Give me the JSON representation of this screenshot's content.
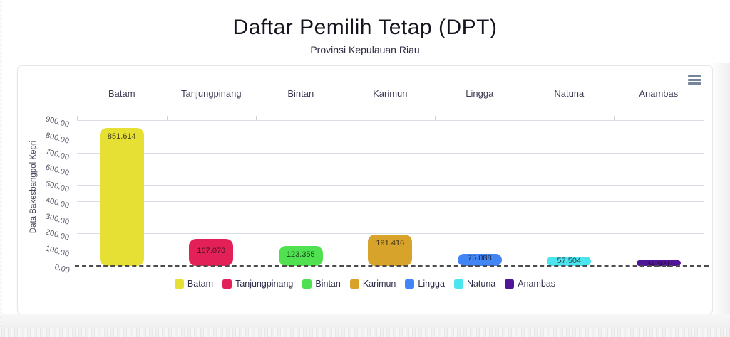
{
  "header": {
    "title": "Daftar Pemilih Tetap (DPT)",
    "subtitle": "Provinsi Kepulauan Riau"
  },
  "icons": {
    "chart_menu": "hamburger-menu-icon"
  },
  "colors": {
    "grid": "#d9dee4",
    "zero_line": "#4c4c4c",
    "menu_icon": "#76869a",
    "title_text": "#15151f",
    "axis_text": "#5c5c6e"
  },
  "chart_data": {
    "type": "bar",
    "title": "Daftar Pemilih Tetap (DPT)",
    "subtitle": "Provinsi Kepulauan Riau",
    "categories": [
      "Batam",
      "Tanjungpinang",
      "Bintan",
      "Karimun",
      "Lingga",
      "Natuna",
      "Anambas"
    ],
    "values": [
      851.614,
      167.076,
      123.355,
      191.416,
      75.088,
      57.504,
      34.921
    ],
    "value_labels": [
      "851.614",
      "167.076",
      "123.355",
      "191.416",
      "75.088",
      "57.504",
      "34.921"
    ],
    "bar_colors": [
      "#e7e034",
      "#e32058",
      "#4fe14f",
      "#d7a32b",
      "#4285f4",
      "#4be4ef",
      "#53149c"
    ],
    "xlabel": "",
    "ylabel": "Data Bakesbangpol Kepri",
    "ylim": [
      0,
      900
    ],
    "yticks": [
      "900.00",
      "800.00",
      "700.00",
      "600.00",
      "500.00",
      "400.00",
      "300.00",
      "200.00",
      "100.00",
      "0.00"
    ],
    "grid": true,
    "category_axis_position": "top",
    "legend_position": "bottom",
    "legend": [
      "Batam",
      "Tanjungpinang",
      "Bintan",
      "Karimun",
      "Lingga",
      "Natuna",
      "Anambas"
    ]
  }
}
